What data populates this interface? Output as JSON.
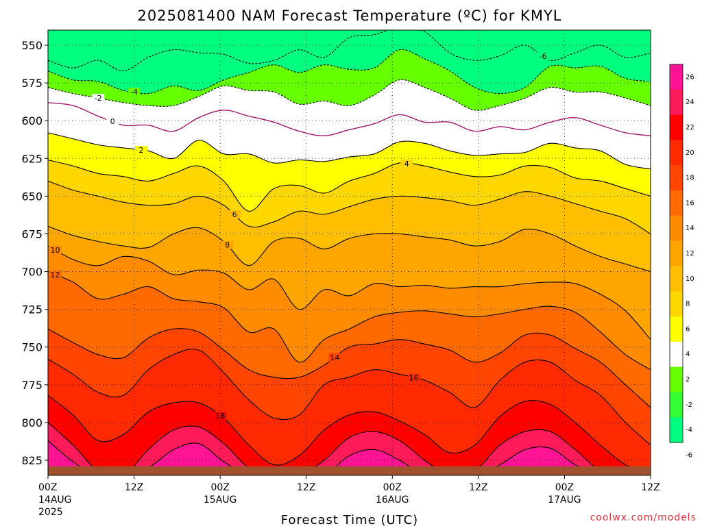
{
  "chart_data": {
    "type": "contour",
    "title": "2025081400 NAM Forecast Temperature (ºC) for KMYL",
    "xlabel": "Forecast Time (UTC)",
    "ylabel": "",
    "credit": "coolwx.com/models",
    "x_ticks": [
      {
        "hour": 0,
        "l1": "00Z",
        "l2": "14AUG",
        "l3": "2025"
      },
      {
        "hour": 12,
        "l1": "12Z",
        "l2": "",
        "l3": ""
      },
      {
        "hour": 24,
        "l1": "00Z",
        "l2": "15AUG",
        "l3": ""
      },
      {
        "hour": 36,
        "l1": "12Z",
        "l2": "",
        "l3": ""
      },
      {
        "hour": 48,
        "l1": "00Z",
        "l2": "16AUG",
        "l3": ""
      },
      {
        "hour": 60,
        "l1": "12Z",
        "l2": "",
        "l3": ""
      },
      {
        "hour": 72,
        "l1": "00Z",
        "l2": "17AUG",
        "l3": ""
      },
      {
        "hour": 84,
        "l1": "12Z",
        "l2": "",
        "l3": ""
      }
    ],
    "y_ticks": [
      550,
      575,
      600,
      625,
      650,
      675,
      700,
      725,
      750,
      775,
      800,
      825
    ],
    "pressure_range": [
      540,
      835
    ],
    "hour_range": [
      0,
      84
    ],
    "colorbar": {
      "labels": [
        "26",
        "24",
        "22",
        "20",
        "18",
        "16",
        "14",
        "12",
        "10",
        "8",
        "6",
        "4",
        "2",
        "-2",
        "-4",
        "-6"
      ],
      "colors": [
        "#ff1493",
        "#ff1a5a",
        "#ff0000",
        "#ff2a00",
        "#ff4500",
        "#ff6a00",
        "#ff8c00",
        "#ffa500",
        "#ffbf00",
        "#ffd700",
        "#ffff00",
        "#ffffff",
        "#66ff00",
        "#33ff33",
        "#00ff80"
      ]
    },
    "isotherms": [
      {
        "t": -6,
        "band_color": "#00ff7f",
        "label": "-6",
        "label_hour": 69,
        "dashed": true,
        "p": [
          560,
          565,
          560,
          567,
          558,
          553,
          555,
          556,
          562,
          560,
          553,
          558,
          545,
          543,
          538,
          541,
          555,
          560,
          557,
          550,
          560,
          555,
          550,
          558,
          555
        ]
      },
      {
        "t": -4,
        "band_color": "#66ff00",
        "label": "-4",
        "label_hour": 12,
        "dashed": true,
        "p": [
          567,
          573,
          574,
          580,
          582,
          577,
          580,
          573,
          568,
          563,
          568,
          563,
          566,
          565,
          553,
          559,
          567,
          578,
          582,
          578,
          564,
          565,
          564,
          572,
          574
        ]
      },
      {
        "t": -2,
        "band_color": "#ffffff",
        "label": "-2",
        "label_hour": 7,
        "dashed": true,
        "p": [
          578,
          582,
          585,
          588,
          590,
          590,
          584,
          577,
          580,
          581,
          589,
          587,
          590,
          583,
          573,
          578,
          585,
          593,
          590,
          585,
          578,
          581,
          581,
          585,
          590
        ]
      },
      {
        "t": 0,
        "band_color": "#ffffff",
        "label": "0",
        "label_hour": 9,
        "dashed": false,
        "p": [
          588,
          590,
          597,
          603,
          603,
          607,
          598,
          593,
          597,
          601,
          607,
          610,
          606,
          602,
          596,
          601,
          601,
          607,
          604,
          606,
          601,
          598,
          603,
          608,
          610
        ]
      },
      {
        "t": 2,
        "band_color": "#ffff00",
        "label": "2",
        "label_hour": 13,
        "dashed": false,
        "p": [
          608,
          612,
          616,
          618,
          620,
          625,
          613,
          622,
          622,
          628,
          626,
          627,
          624,
          622,
          614,
          615,
          620,
          623,
          622,
          621,
          615,
          618,
          620,
          629,
          632
        ]
      },
      {
        "t": 4,
        "band_color": "#ffd700",
        "label": "4",
        "label_hour": 50,
        "dashed": false,
        "p": [
          626,
          630,
          635,
          637,
          640,
          635,
          630,
          640,
          660,
          645,
          643,
          648,
          640,
          635,
          628,
          630,
          634,
          637,
          636,
          630,
          631,
          638,
          640,
          645,
          650
        ]
      },
      {
        "t": 6,
        "band_color": "#ffbf00",
        "label": "6",
        "label_hour": 26,
        "dashed": false,
        "p": [
          640,
          646,
          650,
          654,
          656,
          655,
          650,
          656,
          670,
          667,
          660,
          662,
          657,
          652,
          650,
          651,
          653,
          656,
          652,
          647,
          650,
          655,
          660,
          665,
          675
        ]
      },
      {
        "t": 8,
        "band_color": "#ffa500",
        "label": "8",
        "label_hour": 25,
        "dashed": false,
        "p": [
          670,
          676,
          680,
          683,
          684,
          675,
          671,
          680,
          696,
          680,
          678,
          685,
          678,
          675,
          675,
          677,
          679,
          683,
          680,
          672,
          675,
          683,
          690,
          695,
          700
        ]
      },
      {
        "t": 10,
        "band_color": "#ff8c00",
        "label": "10",
        "label_hour": 1,
        "dashed": false,
        "p": [
          683,
          692,
          696,
          690,
          693,
          702,
          699,
          701,
          712,
          705,
          725,
          712,
          716,
          708,
          710,
          709,
          711,
          710,
          710,
          708,
          707,
          708,
          715,
          726,
          745
        ]
      },
      {
        "t": 12,
        "band_color": "#ff6a00",
        "label": "12",
        "label_hour": 1,
        "dashed": false,
        "p": [
          700,
          707,
          718,
          715,
          710,
          718,
          720,
          724,
          740,
          738,
          760,
          745,
          738,
          730,
          727,
          726,
          728,
          730,
          728,
          725,
          723,
          727,
          740,
          755,
          765
        ]
      },
      {
        "t": 14,
        "band_color": "#ff4500",
        "label": "14",
        "label_hour": 40,
        "dashed": false,
        "p": [
          738,
          747,
          755,
          757,
          744,
          738,
          740,
          752,
          765,
          770,
          770,
          762,
          750,
          748,
          745,
          748,
          752,
          760,
          754,
          742,
          742,
          751,
          760,
          775,
          790
        ]
      },
      {
        "t": 16,
        "band_color": "#ff2a00",
        "label": "16",
        "label_hour": 51,
        "dashed": false,
        "p": [
          758,
          768,
          780,
          782,
          765,
          755,
          752,
          767,
          785,
          797,
          795,
          775,
          770,
          765,
          768,
          772,
          780,
          790,
          772,
          760,
          760,
          772,
          782,
          800,
          815
        ]
      },
      {
        "t": 18,
        "band_color": "#ff0000",
        "label": "18",
        "label_hour": 24,
        "dashed": false,
        "p": [
          782,
          795,
          812,
          808,
          793,
          787,
          787,
          797,
          815,
          828,
          822,
          805,
          795,
          793,
          799,
          808,
          820,
          815,
          796,
          786,
          788,
          800,
          815,
          828,
          835
        ]
      },
      {
        "t": 20,
        "band_color": "#ff1a5a",
        "label": "",
        "label_hour": 0,
        "dashed": false,
        "p": [
          800,
          815,
          832,
          835,
          818,
          805,
          803,
          814,
          830,
          835,
          835,
          825,
          810,
          806,
          812,
          825,
          835,
          832,
          815,
          806,
          806,
          818,
          832,
          835,
          835
        ]
      },
      {
        "t": 22,
        "band_color": "#ff1493",
        "label": "",
        "label_hour": 0,
        "dashed": false,
        "p": [
          812,
          826,
          835,
          835,
          830,
          818,
          814,
          826,
          835,
          835,
          835,
          835,
          822,
          818,
          825,
          835,
          835,
          835,
          828,
          818,
          817,
          828,
          835,
          835,
          835
        ]
      }
    ],
    "top_band_color": "#00ff7f",
    "ground_color": "#a0522d"
  }
}
